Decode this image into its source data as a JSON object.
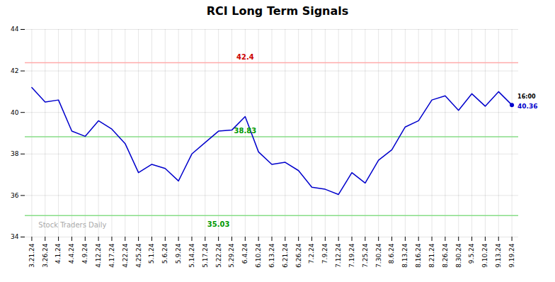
{
  "chart_data": {
    "type": "line",
    "title": "RCI Long Term Signals",
    "categories": [
      "3.21.24",
      "3.26.24",
      "4.1.24",
      "4.4.24",
      "4.9.24",
      "4.12.24",
      "4.17.24",
      "4.22.24",
      "4.25.24",
      "5.1.24",
      "5.6.24",
      "5.9.24",
      "5.14.24",
      "5.17.24",
      "5.22.24",
      "5.29.24",
      "6.4.24",
      "6.10.24",
      "6.13.24",
      "6.21.24",
      "6.26.24",
      "7.2.24",
      "7.9.24",
      "7.12.24",
      "7.19.24",
      "7.25.24",
      "7.30.24",
      "8.6.24",
      "8.13.24",
      "8.16.24",
      "8.21.24",
      "8.26.24",
      "8.30.24",
      "9.5.24",
      "9.10.24",
      "9.13.24",
      "9.19.24"
    ],
    "values": [
      41.2,
      40.5,
      40.6,
      39.1,
      38.85,
      39.6,
      39.2,
      38.5,
      37.1,
      37.5,
      37.3,
      36.7,
      38.0,
      38.55,
      39.1,
      39.15,
      39.8,
      38.1,
      37.5,
      37.6,
      37.2,
      36.4,
      36.3,
      36.05,
      37.1,
      36.6,
      37.7,
      38.2,
      39.3,
      39.6,
      40.6,
      40.8,
      40.1,
      40.9,
      40.3,
      41.0,
      40.36
    ],
    "color": "#0000cc",
    "ylim": [
      34,
      44
    ],
    "yticks": [
      34,
      36,
      38,
      40,
      42,
      44
    ],
    "grid": true,
    "reference_lines": [
      {
        "value": 42.4,
        "color": "#ffaaaa",
        "label_color": "#cc0000"
      },
      {
        "value": 38.83,
        "color": "#88dd88",
        "label_color": "#009900"
      },
      {
        "value": 35.03,
        "color": "#88dd88",
        "label_color": "#009900"
      }
    ],
    "watermark": {
      "text": "Stock Traders Daily",
      "color": "#aaaaaa"
    },
    "last_point": {
      "label": "16:00",
      "value": 40.36,
      "color": "#0000cc"
    }
  }
}
